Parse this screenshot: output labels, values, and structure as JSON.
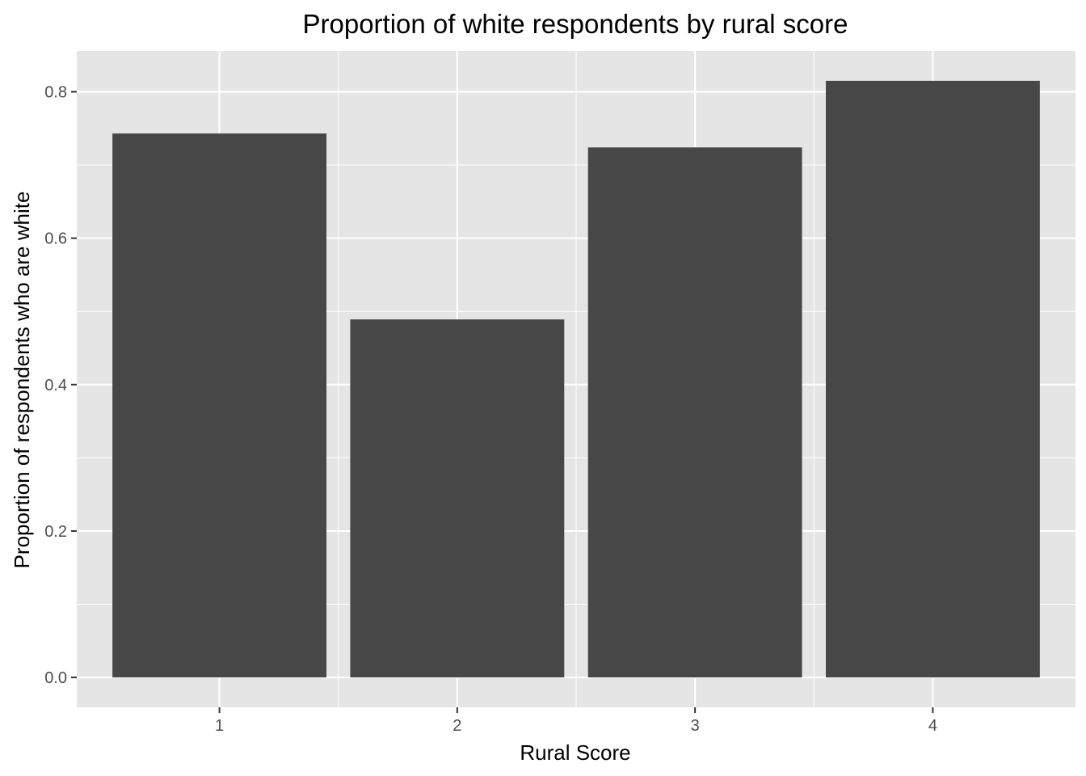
{
  "chart_data": {
    "type": "bar",
    "title": "Proportion of white respondents by rural score",
    "xlabel": "Rural Score",
    "ylabel": "Proportion of respondents who are white",
    "categories": [
      "1",
      "2",
      "3",
      "4"
    ],
    "values": [
      0.743,
      0.489,
      0.724,
      0.815
    ],
    "ylim": [
      -0.0408,
      0.8558
    ],
    "y_ticks": [
      0.0,
      0.2,
      0.4,
      0.6,
      0.8
    ],
    "y_tick_labels": [
      "0.0",
      "0.2",
      "0.4",
      "0.6",
      "0.8"
    ],
    "grid": true,
    "legend": "none",
    "colors": {
      "bar": "#474747",
      "panel": "#e5e5e5",
      "grid": "#ffffff",
      "tick_text": "#4d4d4d",
      "tick_mark": "#333333"
    }
  }
}
